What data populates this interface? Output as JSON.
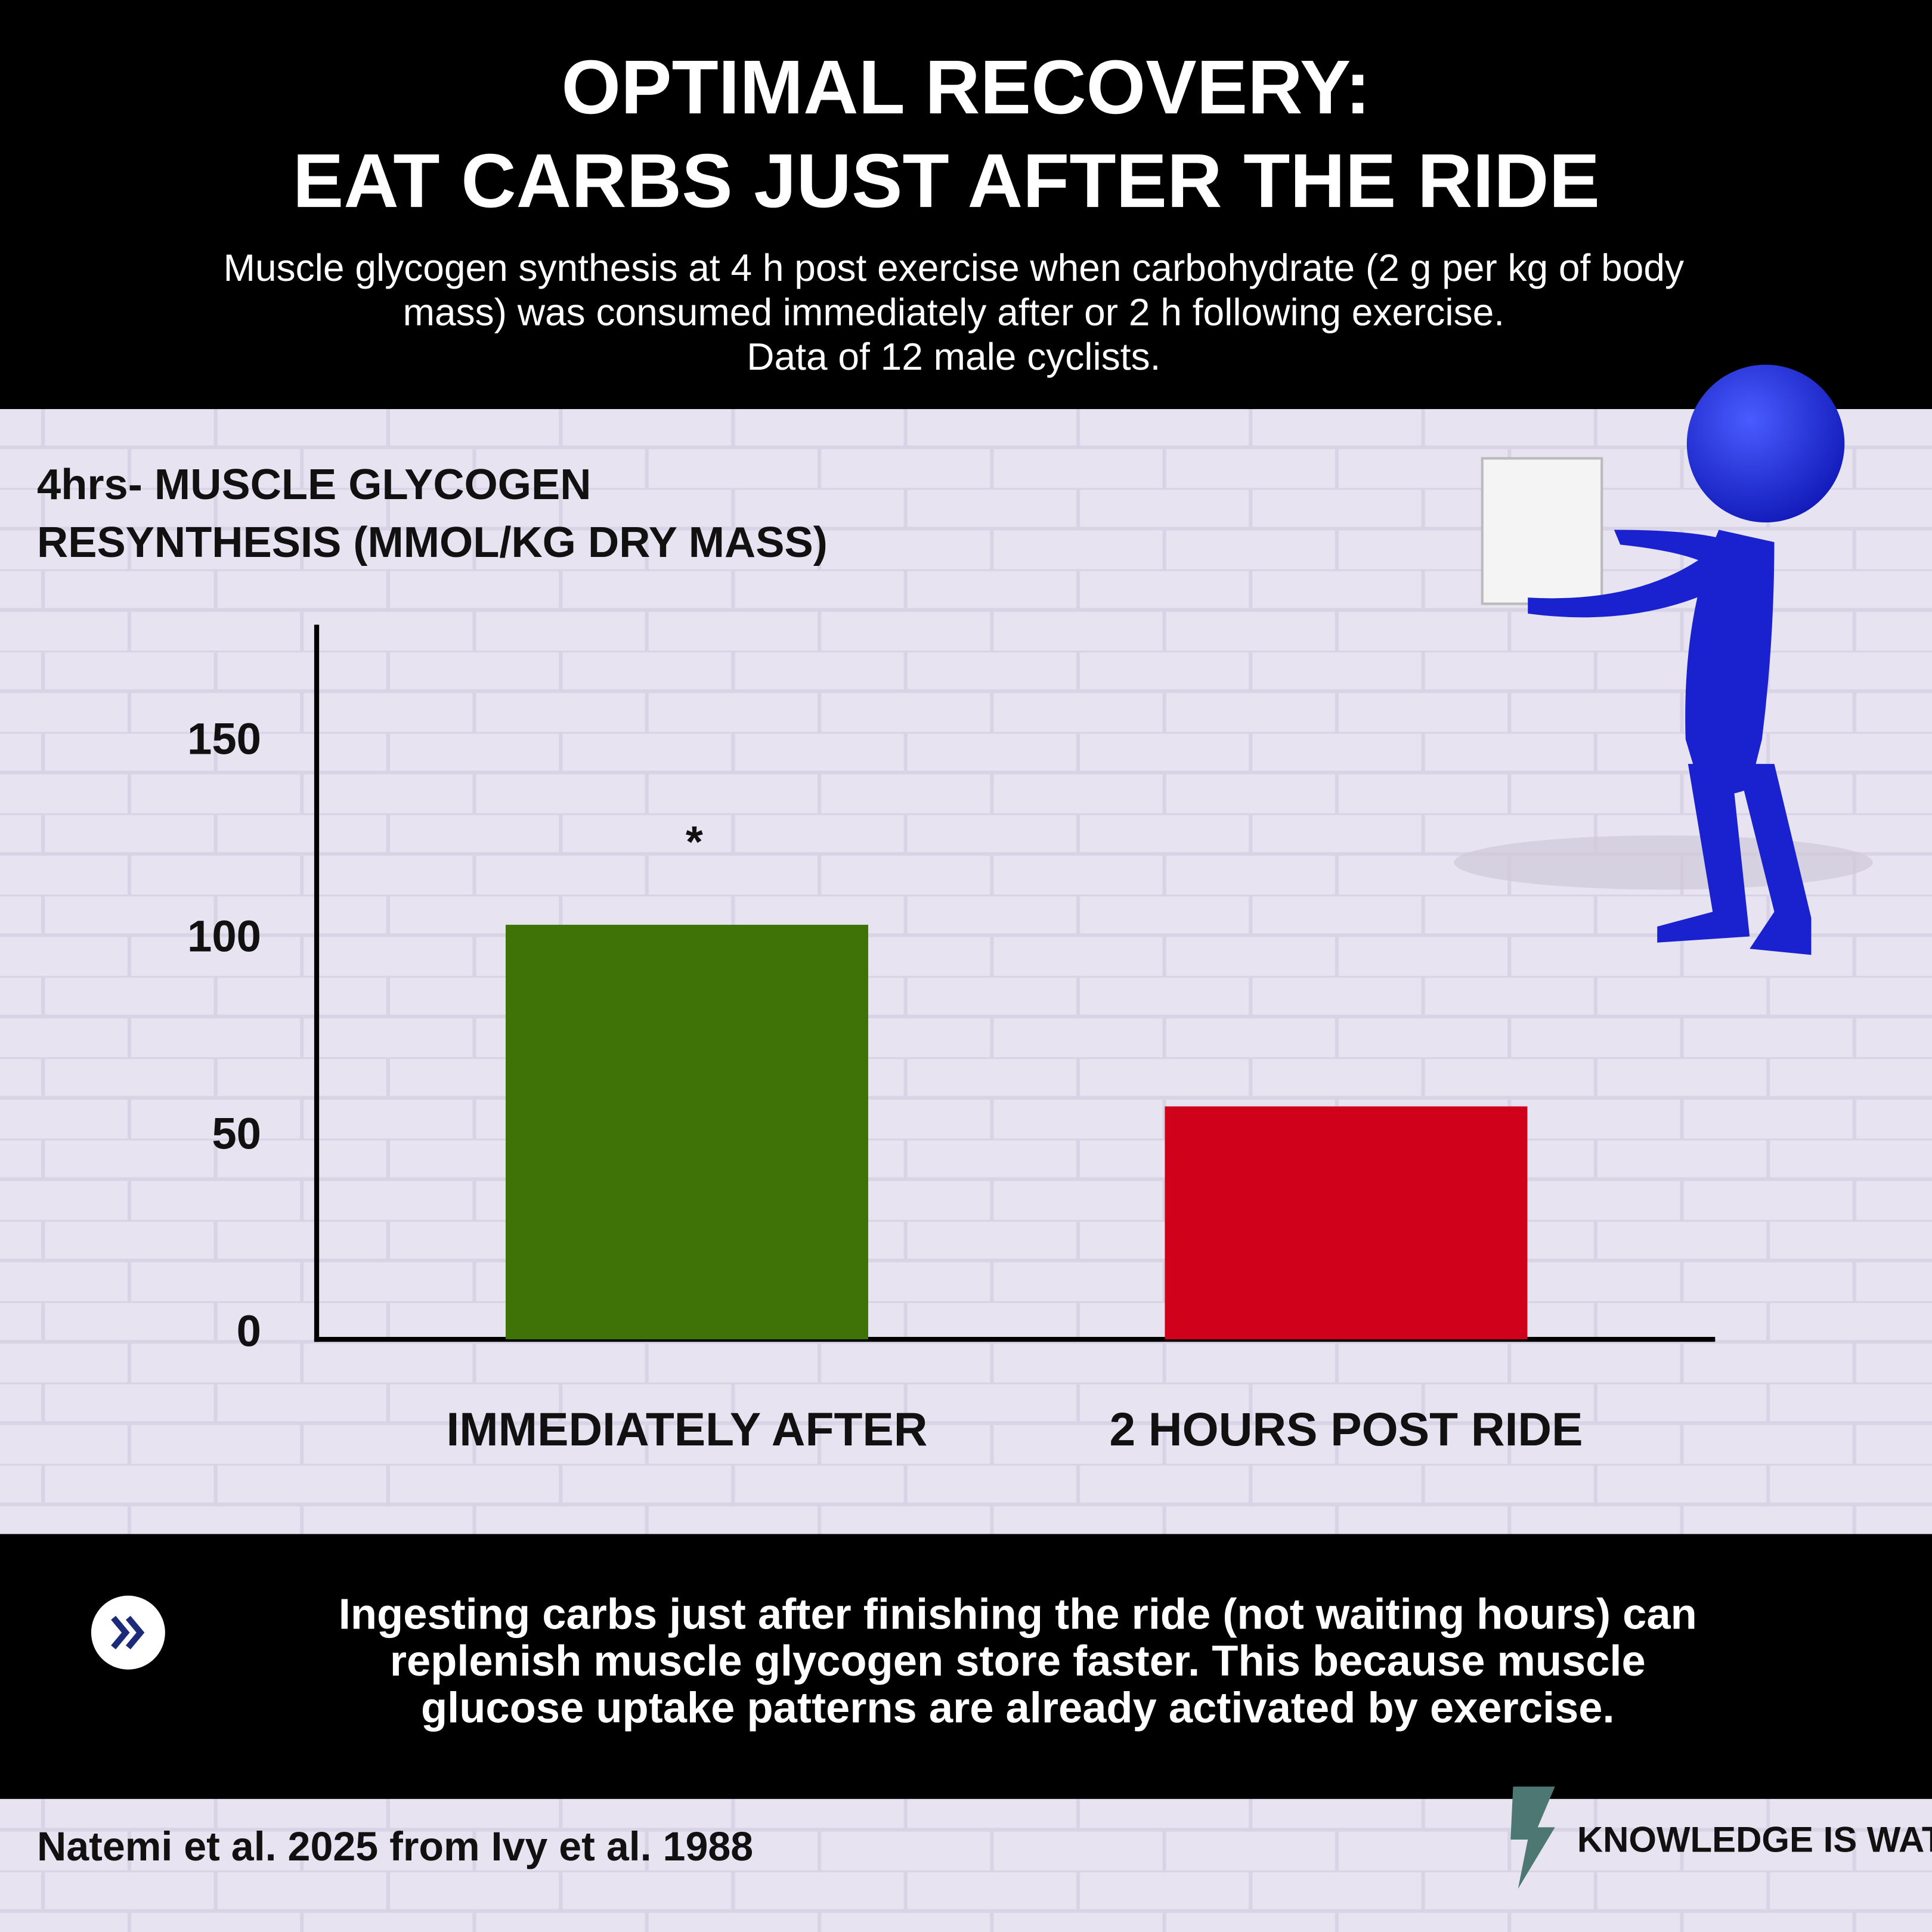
{
  "chart_data": {
    "type": "bar",
    "title": [
      "OPTIMAL RECOVERY:",
      "EAT CARBS JUST AFTER THE RIDE"
    ],
    "subtitle": [
      "Muscle glycogen synthesis at 4 h post exercise when carbohydrate (2 g per kg of body",
      "mass) was consumed immediately after or 2 h following exercise.",
      "Data of 12 male cyclists."
    ],
    "y_label": [
      "4hrs- MUSCLE GLYCOGEN",
      "RESYNTHESIS (MMOL/KG DRY MASS)"
    ],
    "categories": [
      "IMMEDIATELY AFTER",
      "2 HOURS POST RIDE"
    ],
    "values": [
      105,
      59
    ],
    "colors": [
      "#3f7308",
      "#d0021b"
    ],
    "annotations": [
      "*",
      null
    ],
    "ylim": [
      0,
      181
    ],
    "yticks": [
      0,
      50,
      100,
      150
    ],
    "grid": false,
    "note": [
      "Ingesting carbs just after finishing the ride (not waiting hours) can",
      "replenish muscle glycogen store faster. This because muscle",
      "glucose uptake patterns are already activated by exercise."
    ],
    "source": "Natemi et al. 2025 from Ivy et al. 1988",
    "brand": "KNOWLEDGE IS WATT"
  }
}
